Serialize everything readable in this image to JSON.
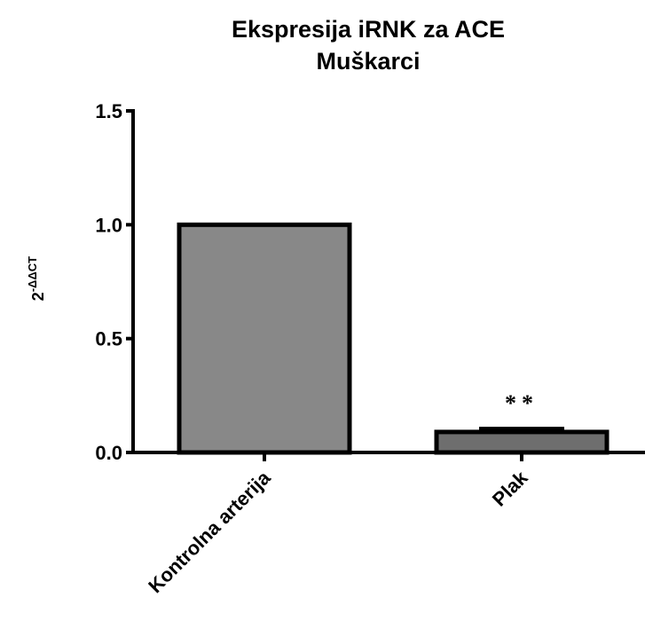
{
  "chart_data": {
    "type": "bar",
    "title": "Ekspresija iRNK za ACE",
    "subtitle": "Muškarci",
    "ylabel": "2",
    "ylabel_superscript": "-ΔΔCT",
    "xlabel": "",
    "ylim": [
      0,
      1.5
    ],
    "yticks": [
      "0.0",
      "0.5",
      "1.0",
      "1.5"
    ],
    "categories": [
      "Kontrolna arterija",
      "Plak"
    ],
    "values": [
      1.0,
      0.09
    ],
    "errors": [
      0,
      0.015
    ],
    "bar_colors": [
      "#888888",
      "#6e6e6e"
    ],
    "annotations": [
      {
        "category": "Plak",
        "text": "**"
      }
    ],
    "grid": false,
    "legend": "none"
  }
}
